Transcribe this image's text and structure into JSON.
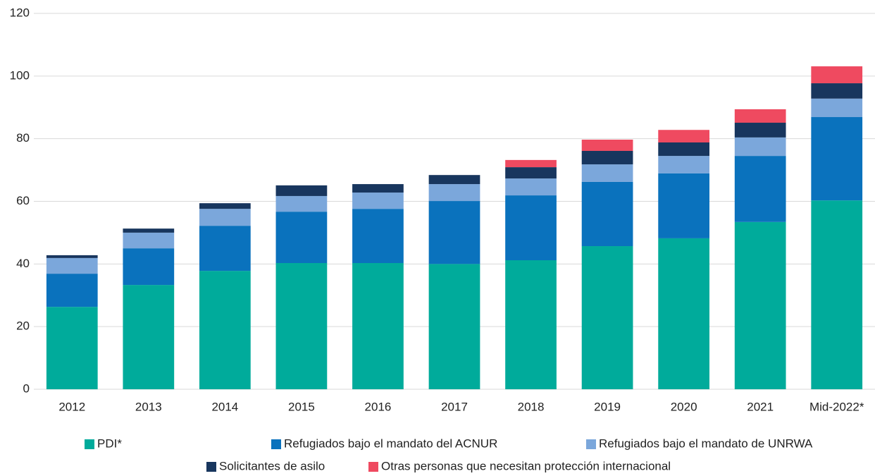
{
  "chart_data": {
    "type": "stacked_bar",
    "categories": [
      "2012",
      "2013",
      "2014",
      "2015",
      "2016",
      "2017",
      "2018",
      "2019",
      "2020",
      "2021",
      "Mid-2022*"
    ],
    "series": [
      {
        "name": "PDI*",
        "color": "#00ab9b",
        "values": [
          26.3,
          33.3,
          37.8,
          40.3,
          40.3,
          40.0,
          41.2,
          45.7,
          48.2,
          53.4,
          60.3
        ]
      },
      {
        "name": "Refugiados bajo el mandato del ACNUR",
        "color": "#0a72bd",
        "values": [
          10.6,
          11.7,
          14.4,
          16.4,
          17.3,
          20.1,
          20.7,
          20.5,
          20.7,
          21.1,
          26.6
        ]
      },
      {
        "name": "Refugiados bajo el mandato de UNRWA",
        "color": "#7ba7db",
        "values": [
          5.0,
          5.0,
          5.4,
          5.0,
          5.2,
          5.4,
          5.4,
          5.6,
          5.6,
          5.9,
          5.9
        ]
      },
      {
        "name": "Solicitantes de asilo",
        "color": "#18365e",
        "values": [
          0.9,
          1.3,
          1.8,
          3.4,
          2.7,
          2.9,
          3.6,
          4.3,
          4.3,
          4.7,
          4.9
        ]
      },
      {
        "name": "Otras personas que necesitan protección internacional",
        "color": "#ef4a60",
        "values": [
          0,
          0,
          0,
          0,
          0,
          0,
          2.3,
          3.6,
          4.0,
          4.3,
          5.4
        ]
      }
    ],
    "ylim": [
      0,
      120
    ],
    "yticks": [
      0,
      20,
      40,
      60,
      80,
      100,
      120
    ],
    "grid": true
  }
}
